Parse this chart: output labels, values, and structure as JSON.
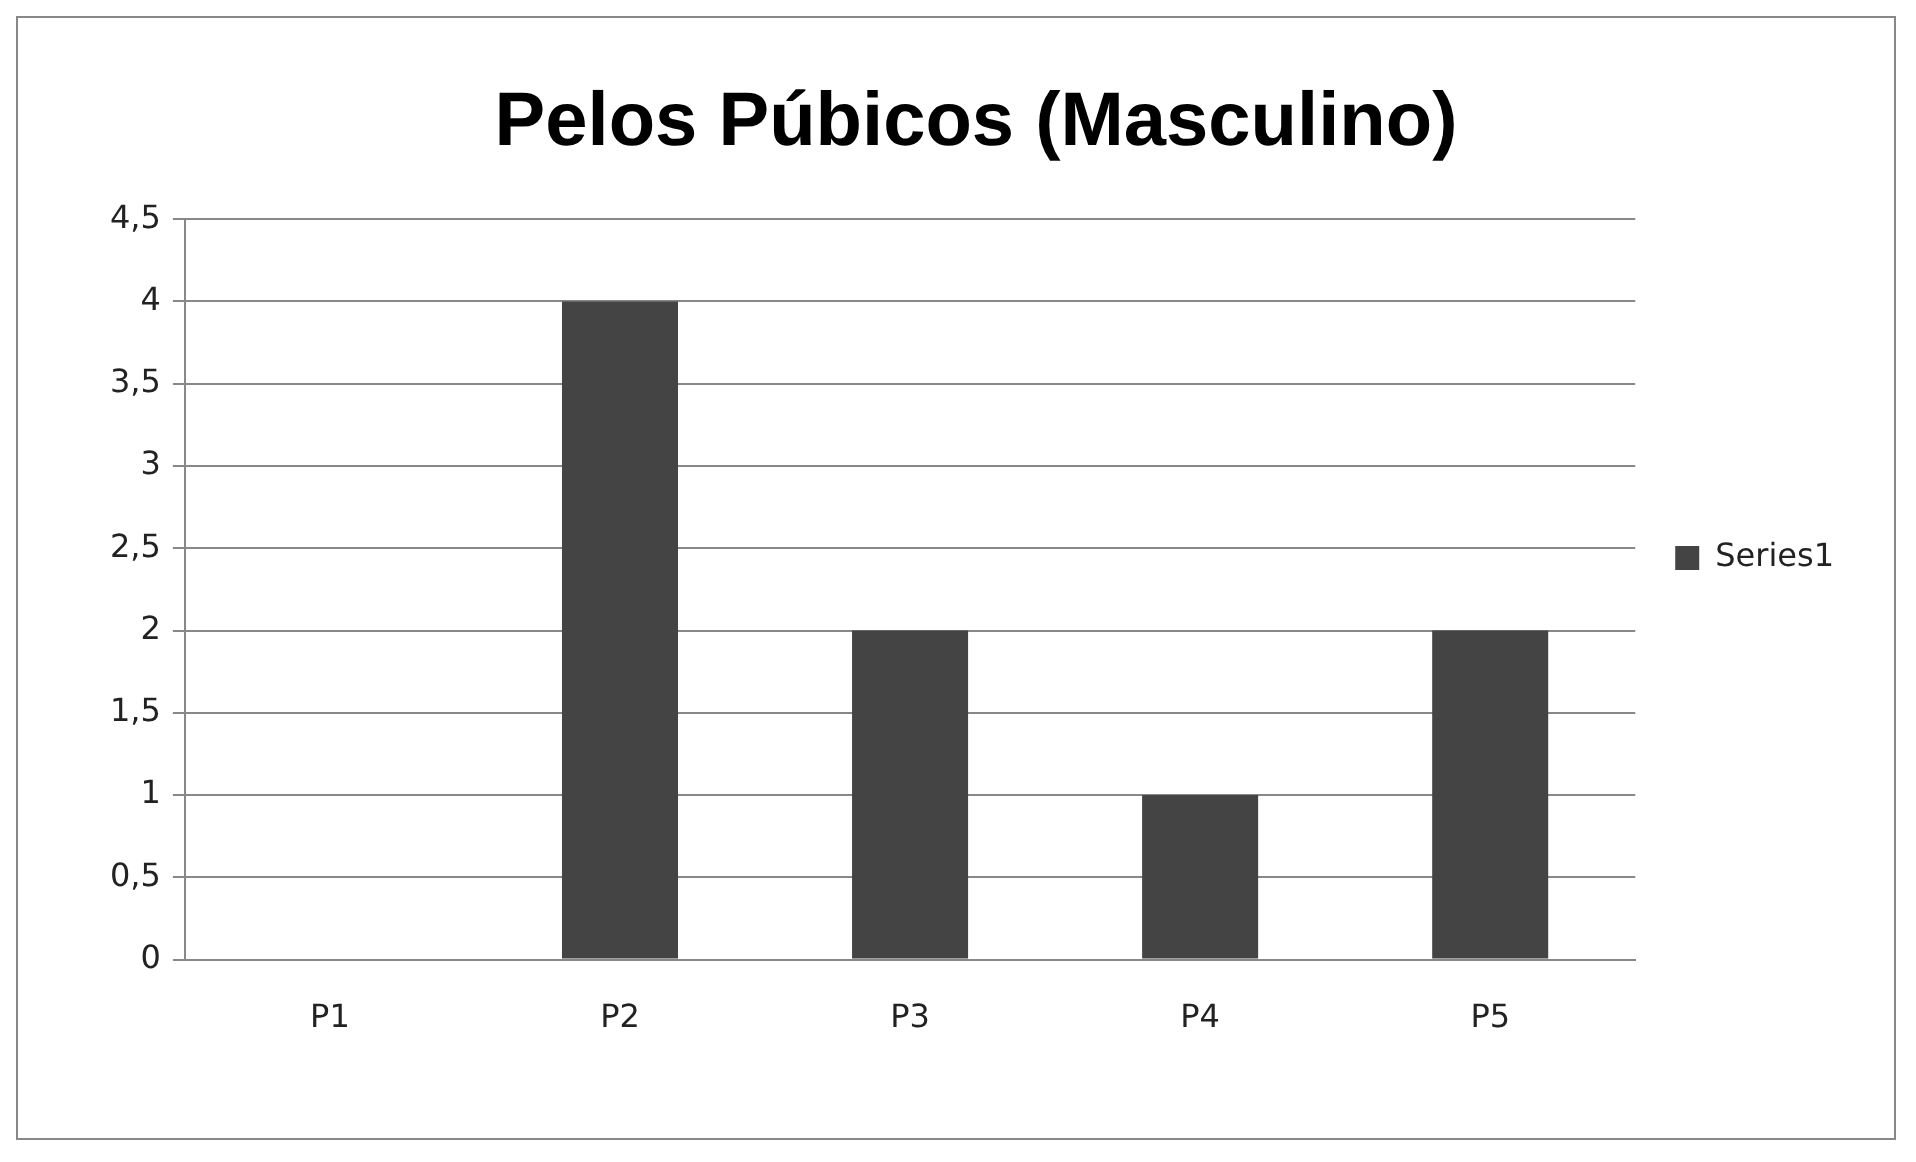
{
  "chart_data": {
    "type": "bar",
    "title": "Pelos Púbicos (Masculino)",
    "categories": [
      "P1",
      "P2",
      "P3",
      "P4",
      "P5"
    ],
    "series": [
      {
        "name": "Series1",
        "color": "#444444",
        "values": [
          0,
          4,
          2,
          1,
          2
        ]
      }
    ],
    "ylim": [
      0,
      4.5
    ],
    "yticks": [
      0,
      {
        "value": 0.5,
        "label": "0,5"
      },
      1,
      {
        "value": 1.5,
        "label": "1,5"
      },
      2,
      {
        "value": 2.5,
        "label": "2,5"
      },
      3,
      {
        "value": 3.5,
        "label": "3,5"
      },
      4,
      {
        "value": 4.5,
        "label": "4,5"
      }
    ],
    "grid": "y",
    "legend": "right"
  }
}
